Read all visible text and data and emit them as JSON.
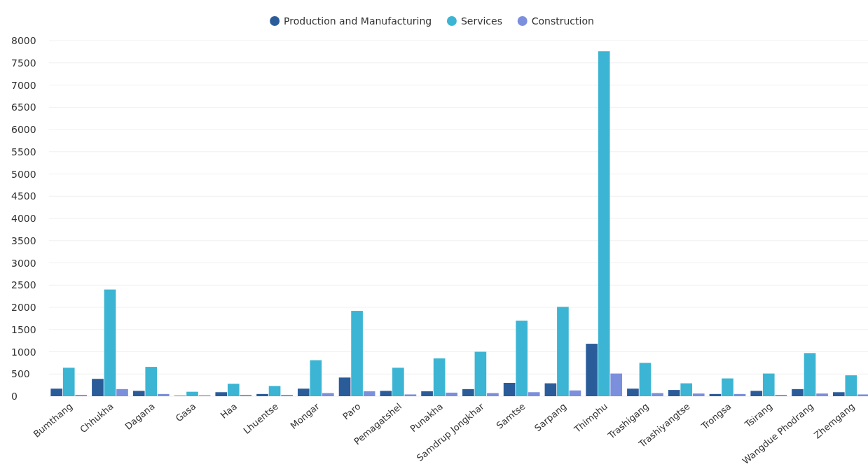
{
  "chart_data": {
    "type": "bar",
    "categories": [
      "Bumthang",
      "Chhukha",
      "Dagana",
      "Gasa",
      "Haa",
      "Lhuentse",
      "Mongar",
      "Paro",
      "Pemagatshel",
      "Punakha",
      "Samdrup Jongkhar",
      "Samtse",
      "Sarpang",
      "Thimphu",
      "Trashigang",
      "Trashiyangtse",
      "Trongsa",
      "Tsirang",
      "Wangdue Phodrang",
      "Zhemgang"
    ],
    "series": [
      {
        "name": "Production and Manufacturing",
        "color": "#2b5c9a",
        "values": [
          170,
          390,
          120,
          10,
          90,
          50,
          170,
          420,
          120,
          110,
          160,
          300,
          290,
          1180,
          170,
          140,
          50,
          120,
          160,
          90
        ]
      },
      {
        "name": "Services",
        "color": "#3bb5d3",
        "values": [
          640,
          2400,
          660,
          100,
          280,
          230,
          810,
          1920,
          640,
          850,
          1000,
          1700,
          2010,
          7760,
          750,
          290,
          400,
          510,
          970,
          470
        ]
      },
      {
        "name": "Construction",
        "color": "#7b8fdd",
        "values": [
          30,
          160,
          50,
          20,
          30,
          30,
          70,
          110,
          40,
          80,
          70,
          90,
          130,
          510,
          70,
          60,
          50,
          30,
          60,
          40
        ]
      }
    ],
    "ylim": [
      0,
      8000
    ],
    "yticks": [
      0,
      500,
      1000,
      1500,
      2000,
      2500,
      3000,
      3500,
      4000,
      4500,
      5000,
      5500,
      6000,
      6500,
      7000,
      7500,
      8000
    ],
    "grid": "y",
    "legend": "top"
  }
}
